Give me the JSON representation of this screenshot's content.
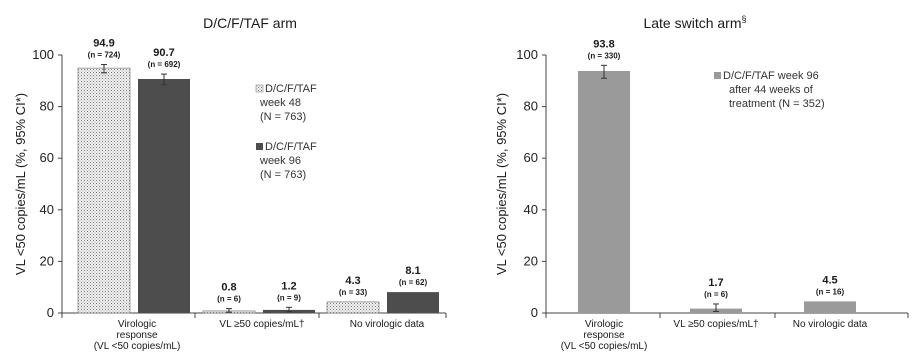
{
  "chart_data": [
    {
      "type": "bar",
      "title": "D/C/F/TAF arm",
      "title_superscript": "",
      "ylabel": "VL <50 copies/mL (%, 95% CI*)",
      "ylim": [
        0,
        100
      ],
      "yticks": [
        "0",
        "20",
        "40",
        "60",
        "80",
        "100"
      ],
      "categories": [
        [
          "Virologic",
          "response",
          "(VL <50 copies/mL)"
        ],
        [
          "VL ≥50 copies/mL†"
        ],
        [
          "No virologic data"
        ]
      ],
      "legend_position": "right",
      "series": [
        {
          "name": [
            "D/C/F/TAF",
            "week 48",
            "(N = 763)"
          ],
          "color": "#e6e6e6",
          "pattern": "dotted",
          "values": [
            94.9,
            0.8,
            4.3
          ],
          "value_labels": [
            "94.9",
            "0.8",
            "4.3"
          ],
          "n_labels": [
            "(n = 724)",
            "(n = 6)",
            "(n = 33)"
          ],
          "error": [
            [
              93.1,
              96.3
            ],
            [
              0.3,
              1.7
            ],
            null
          ]
        },
        {
          "name": [
            "D/C/F/TAF",
            "week 96",
            "(N = 763)"
          ],
          "color": "#4d4d4d",
          "pattern": "solid",
          "values": [
            90.7,
            1.2,
            8.1
          ],
          "value_labels": [
            "90.7",
            "1.2",
            "8.1"
          ],
          "n_labels": [
            "(n = 692)",
            "(n = 9)",
            "(n = 62)"
          ],
          "error": [
            [
              88.4,
              92.6
            ],
            [
              0.5,
              2.2
            ],
            null
          ]
        }
      ]
    },
    {
      "type": "bar",
      "title": "Late switch arm",
      "title_superscript": "§",
      "ylabel": "VL <50 copies/mL (%, 95% CI*)",
      "ylim": [
        0,
        100
      ],
      "yticks": [
        "0",
        "20",
        "40",
        "60",
        "80",
        "100"
      ],
      "categories": [
        [
          "Virologic",
          "response",
          "(VL <50 copies/mL)"
        ],
        [
          "VL ≥50 copies/mL†"
        ],
        [
          "No virologic data"
        ]
      ],
      "legend_position": "top-right",
      "series": [
        {
          "name": [
            "D/C/F/TAF week 96",
            "after 44 weeks of",
            "treatment (N = 352)"
          ],
          "color": "#9a9a9a",
          "pattern": "solid",
          "values": [
            93.8,
            1.7,
            4.5
          ],
          "value_labels": [
            "93.8",
            "1.7",
            "4.5"
          ],
          "n_labels": [
            "(n = 330)",
            "(n = 6)",
            "(n = 16)"
          ],
          "error": [
            [
              91.0,
              96.0
            ],
            [
              0.6,
              3.5
            ],
            null
          ]
        }
      ]
    }
  ]
}
